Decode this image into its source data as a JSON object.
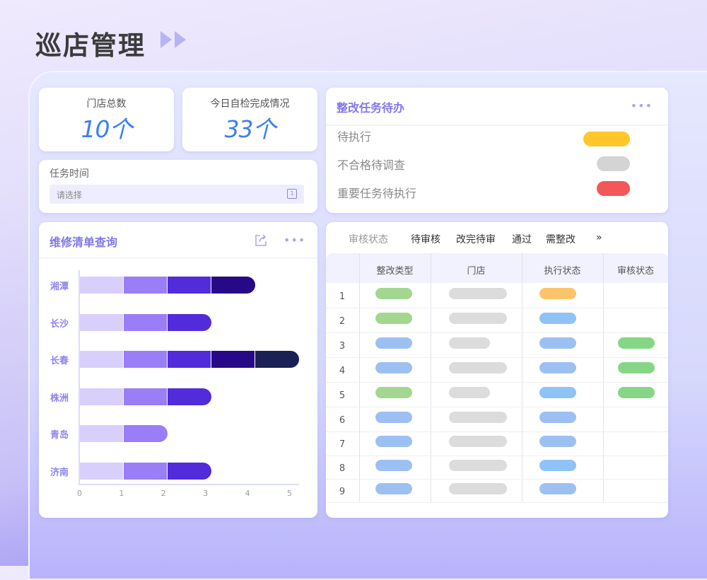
{
  "header": {
    "title": "巡店管理",
    "icon": "double-play-icon"
  },
  "kpis": [
    {
      "label": "门店总数",
      "value": "10个"
    },
    {
      "label": "今日自检完成情况",
      "value": "33个"
    }
  ],
  "task_time": {
    "label": "任务时间",
    "placeholder": "请选择",
    "icon": "calendar-icon"
  },
  "todo": {
    "title": "整改任务待办",
    "more": "•••",
    "items": [
      {
        "label": "待执行",
        "color": "#ffc72a"
      },
      {
        "label": "不合格待调查",
        "color": "#d4d4d4"
      },
      {
        "label": "重要任务待执行",
        "color": "#f25759"
      }
    ]
  },
  "repair": {
    "title": "维修清单查询",
    "more": "•••",
    "export_icon": "export-icon"
  },
  "chart_data": {
    "type": "bar",
    "orientation": "horizontal",
    "stacked": true,
    "categories": [
      "湘潭",
      "长沙",
      "长春",
      "株洲",
      "青岛",
      "济南"
    ],
    "series": [
      {
        "color": "#d9cffc",
        "values": [
          1,
          1,
          1,
          1,
          1,
          1
        ]
      },
      {
        "color": "#9a7ef7",
        "values": [
          1,
          1,
          1,
          1,
          1,
          1
        ]
      },
      {
        "color": "#522cda",
        "values": [
          1,
          1,
          1,
          1,
          0,
          1
        ]
      },
      {
        "color": "#270887",
        "values": [
          1,
          0,
          1,
          0,
          0,
          0
        ]
      },
      {
        "color": "#1b2155",
        "values": [
          0,
          0,
          1,
          0,
          0,
          0
        ]
      }
    ],
    "xticks": [
      "0",
      "1",
      "2",
      "3",
      "4",
      "5"
    ],
    "xlim": [
      0,
      5
    ],
    "grid": false
  },
  "review": {
    "filter_label": "审核状态",
    "tabs": [
      "待审核",
      "改完待审",
      "通过",
      "需整改"
    ],
    "more": "»",
    "columns": [
      "整改类型",
      "门店",
      "执行状态",
      "审核状态"
    ],
    "rows": [
      {
        "n": "1",
        "type": "#a3d78f",
        "store": "long",
        "exec": "#fdc46a",
        "review": ""
      },
      {
        "n": "2",
        "type": "#a3d78f",
        "store": "long",
        "exec": "#8fc2f7",
        "review": ""
      },
      {
        "n": "3",
        "type": "#9dc0f2",
        "store": "short",
        "exec": "#9dc0f2",
        "review": "#86d785"
      },
      {
        "n": "4",
        "type": "#9dc0f2",
        "store": "long",
        "exec": "#9dc0f2",
        "review": "#86d785"
      },
      {
        "n": "5",
        "type": "#a3d78f",
        "store": "short",
        "exec": "#8fc2f7",
        "review": "#86d785"
      },
      {
        "n": "6",
        "type": "#9dc0f2",
        "store": "long",
        "exec": "#9dc0f2",
        "review": ""
      },
      {
        "n": "7",
        "type": "#9dc0f2",
        "store": "long",
        "exec": "#9dc0f2",
        "review": ""
      },
      {
        "n": "8",
        "type": "#9dc0f2",
        "store": "long",
        "exec": "#8fc2f7",
        "review": ""
      },
      {
        "n": "9",
        "type": "#9dc0f2",
        "store": "long",
        "exec": "#9dc0f2",
        "review": ""
      }
    ]
  }
}
